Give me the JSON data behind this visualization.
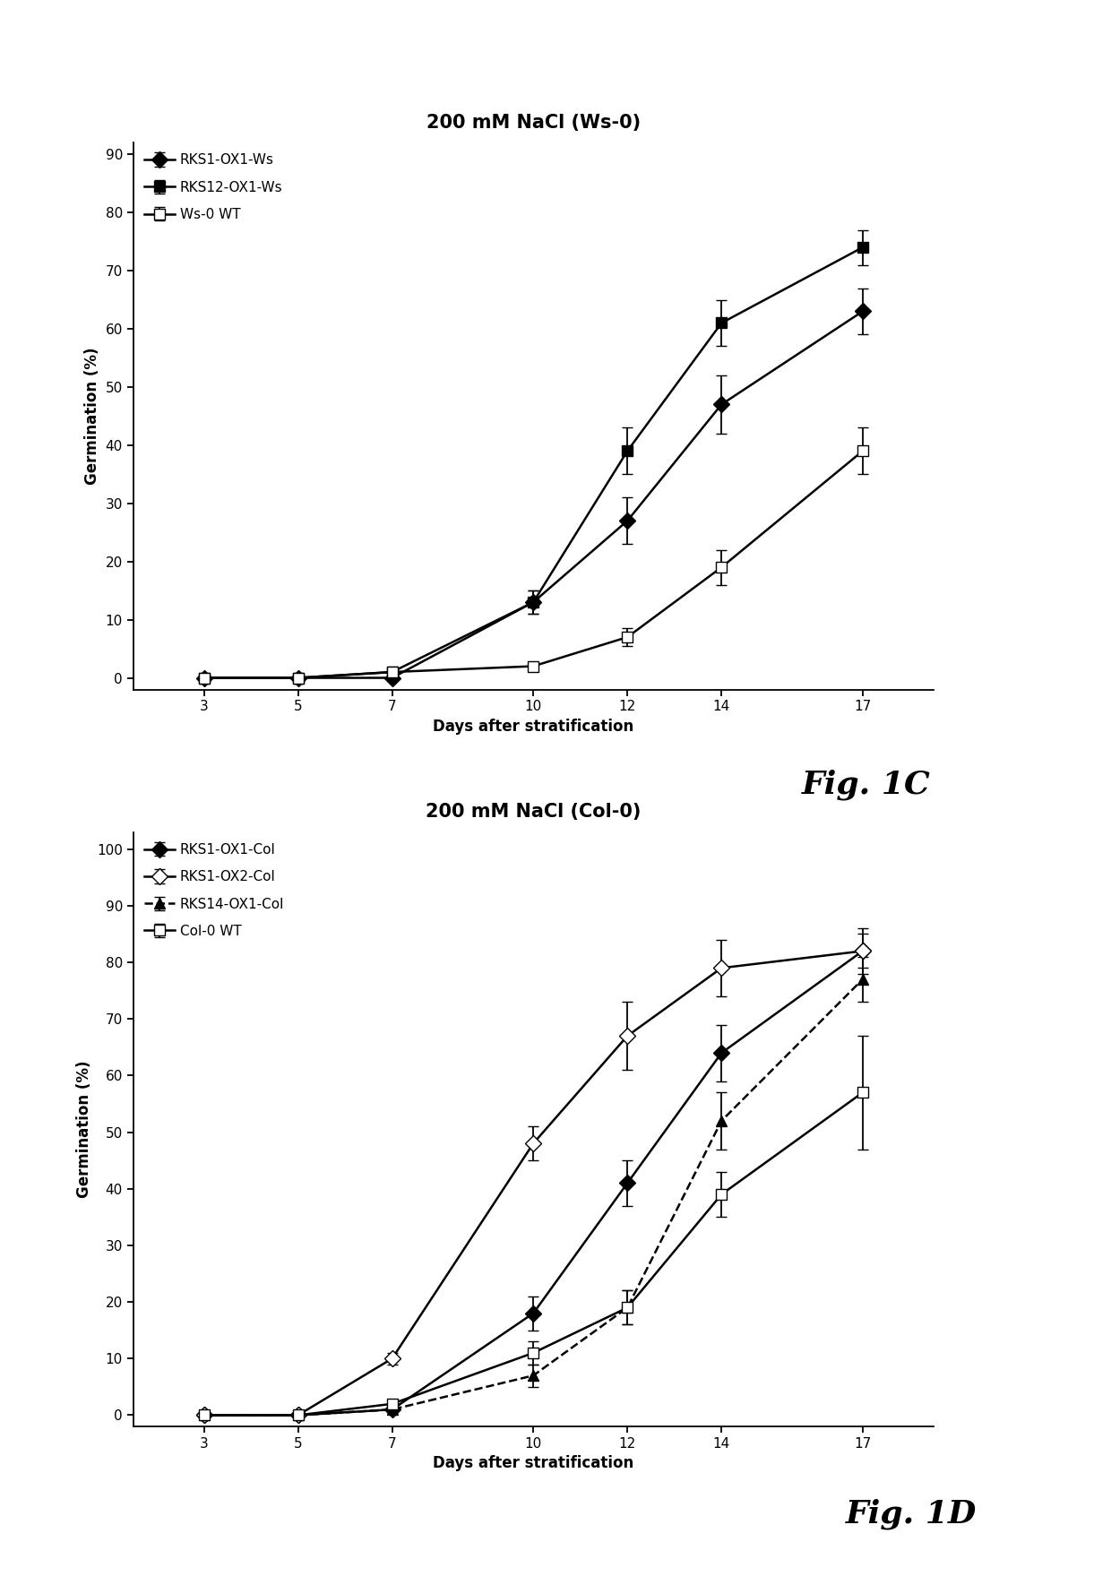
{
  "panel_C": {
    "title": "200 mM NaCl (Ws-0)",
    "xlabel": "Days after stratification",
    "ylabel": "Germination (%)",
    "x": [
      3,
      5,
      7,
      10,
      12,
      14,
      17
    ],
    "series": [
      {
        "label": "RKS1-OX1-Ws",
        "y": [
          0,
          0,
          0,
          13,
          27,
          47,
          63
        ],
        "yerr": [
          0,
          0,
          0,
          2,
          4,
          5,
          4
        ],
        "marker": "D",
        "linestyle": "-",
        "color": "#000000",
        "fillstyle": "full"
      },
      {
        "label": "RKS12-OX1-Ws",
        "y": [
          0,
          0,
          1,
          13,
          39,
          61,
          74
        ],
        "yerr": [
          0,
          0,
          0,
          2,
          4,
          4,
          3
        ],
        "marker": "s",
        "linestyle": "-",
        "color": "#000000",
        "fillstyle": "full"
      },
      {
        "label": "Ws-0 WT",
        "y": [
          0,
          0,
          1,
          2,
          7,
          19,
          39
        ],
        "yerr": [
          0,
          0,
          0,
          0.5,
          1.5,
          3,
          4
        ],
        "marker": "s",
        "linestyle": "-",
        "color": "#000000",
        "fillstyle": "none"
      }
    ],
    "ylim": [
      -2,
      92
    ],
    "yticks": [
      0,
      10,
      20,
      30,
      40,
      50,
      60,
      70,
      80,
      90
    ],
    "fig_label": "Fig. 1C"
  },
  "panel_D": {
    "title": "200 mM NaCl (Col-0)",
    "xlabel": "Days after stratification",
    "ylabel": "Germination (%)",
    "x": [
      3,
      5,
      7,
      10,
      12,
      14,
      17
    ],
    "series": [
      {
        "label": "RKS1-OX1-Col",
        "y": [
          0,
          0,
          1,
          18,
          41,
          64,
          82
        ],
        "yerr": [
          0,
          0,
          0.5,
          3,
          4,
          5,
          3
        ],
        "marker": "D",
        "linestyle": "-",
        "color": "#000000",
        "fillstyle": "full"
      },
      {
        "label": "RKS1-OX2-Col",
        "y": [
          0,
          0,
          10,
          48,
          67,
          79,
          82
        ],
        "yerr": [
          0,
          0,
          1,
          3,
          6,
          5,
          4
        ],
        "marker": "D",
        "linestyle": "-",
        "color": "#000000",
        "fillstyle": "none"
      },
      {
        "label": "RKS14-OX1-Col",
        "y": [
          0,
          0,
          1,
          7,
          19,
          52,
          77
        ],
        "yerr": [
          0,
          0,
          0.5,
          2,
          3,
          5,
          4
        ],
        "marker": "^",
        "linestyle": "--",
        "color": "#000000",
        "fillstyle": "full"
      },
      {
        "label": "Col-0 WT",
        "y": [
          0,
          0,
          2,
          11,
          19,
          39,
          57
        ],
        "yerr": [
          0,
          0,
          0.5,
          2,
          3,
          4,
          10
        ],
        "marker": "s",
        "linestyle": "-",
        "color": "#000000",
        "fillstyle": "none"
      }
    ],
    "ylim": [
      -2,
      103
    ],
    "yticks": [
      0,
      10,
      20,
      30,
      40,
      50,
      60,
      70,
      80,
      90,
      100
    ],
    "fig_label": "Fig. 1D"
  },
  "background_color": "#ffffff"
}
